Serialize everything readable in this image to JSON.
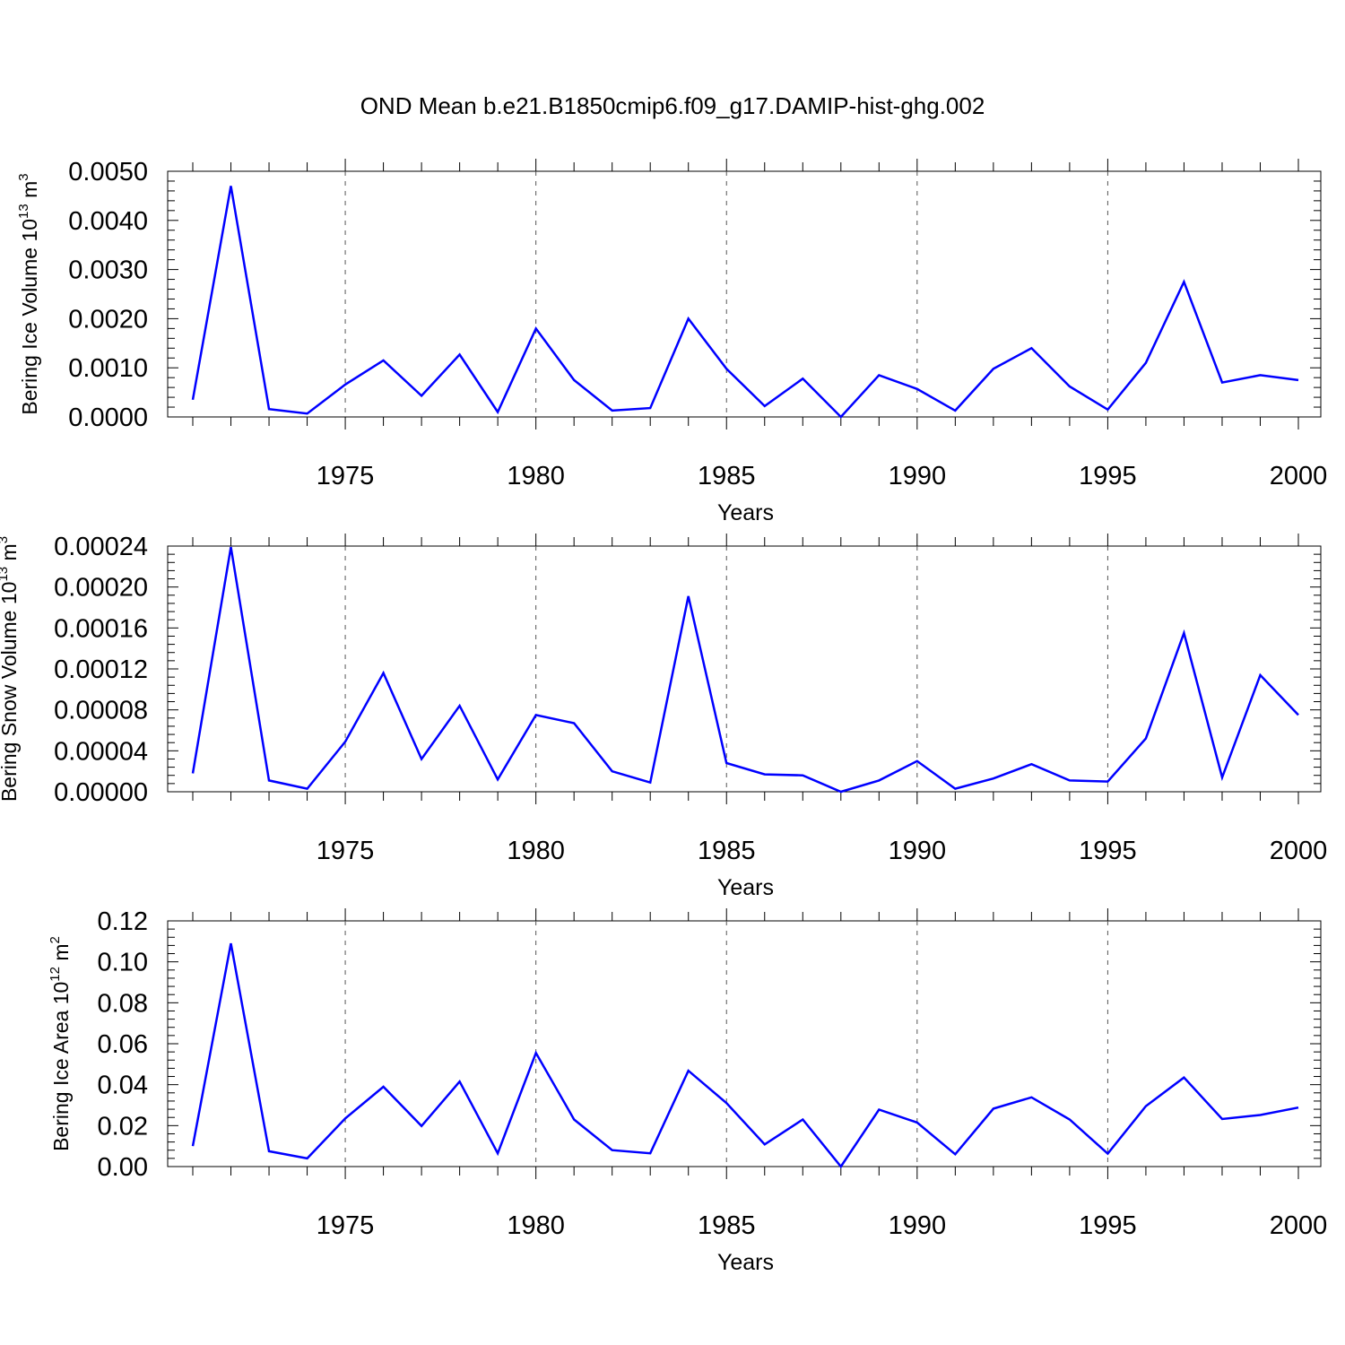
{
  "figure_title": "OND Mean b.e21.B1850cmip6.f09_g17.DAMIP-hist-ghg.002",
  "line_color": "#0000ff",
  "chart_data": [
    {
      "type": "line",
      "title": "OND Mean b.e21.B1850cmip6.f09_g17.DAMIP-hist-ghg.002",
      "xlabel": "Years",
      "ylabel": {
        "main": "Bering Ice Volume 10",
        "exp": "13",
        "unit": " m",
        "unit_exp": "3"
      },
      "xlim": [
        1971,
        2000
      ],
      "ylim": [
        0,
        0.005
      ],
      "xticks": [
        1975,
        1980,
        1985,
        1990,
        1995,
        2000
      ],
      "xtick_labels": [
        "1975",
        "1980",
        "1985",
        "1990",
        "1995",
        "2000"
      ],
      "yticks": [
        0,
        0.001,
        0.002,
        0.003,
        0.004,
        0.005
      ],
      "ytick_labels": [
        "0.0000",
        "0.0010",
        "0.0020",
        "0.0030",
        "0.0040",
        "0.0050"
      ],
      "grid": "vertical dashed at major x ticks",
      "series": [
        {
          "name": "Bering Ice Volume",
          "x": [
            1971,
            1972,
            1973,
            1974,
            1975,
            1976,
            1977,
            1978,
            1979,
            1980,
            1981,
            1982,
            1983,
            1984,
            1985,
            1986,
            1987,
            1988,
            1989,
            1990,
            1991,
            1992,
            1993,
            1994,
            1995,
            1996,
            1997,
            1998,
            1999,
            2000
          ],
          "values": [
            0.00035,
            0.0047,
            0.00016,
            7e-05,
            0.00066,
            0.00115,
            0.00043,
            0.00127,
            0.0001,
            0.0018,
            0.00075,
            0.00013,
            0.00018,
            0.002,
            0.00098,
            0.00022,
            0.00078,
            0.0,
            0.00085,
            0.00057,
            0.00013,
            0.00098,
            0.0014,
            0.00062,
            0.00015,
            0.0011,
            0.00275,
            0.0007,
            0.00085,
            0.00075
          ]
        }
      ]
    },
    {
      "type": "line",
      "xlabel": "Years",
      "ylabel": {
        "main": "Bering Snow Volume 10",
        "exp": "13",
        "unit": " m",
        "unit_exp": "3"
      },
      "xlim": [
        1971,
        2000
      ],
      "ylim": [
        0,
        0.00024
      ],
      "xticks": [
        1975,
        1980,
        1985,
        1990,
        1995,
        2000
      ],
      "xtick_labels": [
        "1975",
        "1980",
        "1985",
        "1990",
        "1995",
        "2000"
      ],
      "yticks": [
        0,
        4e-05,
        8e-05,
        0.00012,
        0.00016,
        0.0002,
        0.00024
      ],
      "ytick_labels": [
        "0.00000",
        "0.00004",
        "0.00008",
        "0.00012",
        "0.00016",
        "0.00020",
        "0.00024"
      ],
      "grid": "vertical dashed at major x ticks",
      "series": [
        {
          "name": "Bering Snow Volume",
          "x": [
            1971,
            1972,
            1973,
            1974,
            1975,
            1976,
            1977,
            1978,
            1979,
            1980,
            1981,
            1982,
            1983,
            1984,
            1985,
            1986,
            1987,
            1988,
            1989,
            1990,
            1991,
            1992,
            1993,
            1994,
            1995,
            1996,
            1997,
            1998,
            1999,
            2000
          ],
          "values": [
            1.8e-05,
            0.000239,
            1.1e-05,
            3e-06,
            4.9e-05,
            0.000116,
            3.2e-05,
            8.4e-05,
            1.2e-05,
            7.5e-05,
            6.7e-05,
            2e-05,
            9e-06,
            0.000191,
            2.8e-05,
            1.7e-05,
            1.6e-05,
            0.0,
            1.1e-05,
            3e-05,
            3e-06,
            1.3e-05,
            2.7e-05,
            1.1e-05,
            1e-05,
            5.2e-05,
            0.000155,
            1.4e-05,
            0.000114,
            7.5e-05
          ]
        }
      ]
    },
    {
      "type": "line",
      "xlabel": "Years",
      "ylabel": {
        "main": "Bering Ice Area 10",
        "exp": "12",
        "unit": " m",
        "unit_exp": "2"
      },
      "xlim": [
        1971,
        2000
      ],
      "ylim": [
        0,
        0.12
      ],
      "xticks": [
        1975,
        1980,
        1985,
        1990,
        1995,
        2000
      ],
      "xtick_labels": [
        "1975",
        "1980",
        "1985",
        "1990",
        "1995",
        "2000"
      ],
      "yticks": [
        0,
        0.02,
        0.04,
        0.06,
        0.08,
        0.1,
        0.12
      ],
      "ytick_labels": [
        "0.00",
        "0.02",
        "0.04",
        "0.06",
        "0.08",
        "0.10",
        "0.12"
      ],
      "grid": "vertical dashed at major x ticks",
      "series": [
        {
          "name": "Bering Ice Area",
          "x": [
            1971,
            1972,
            1973,
            1974,
            1975,
            1976,
            1977,
            1978,
            1979,
            1980,
            1981,
            1982,
            1983,
            1984,
            1985,
            1986,
            1987,
            1988,
            1989,
            1990,
            1991,
            1992,
            1993,
            1994,
            1995,
            1996,
            1997,
            1998,
            1999,
            2000
          ],
          "values": [
            0.01,
            0.109,
            0.0075,
            0.004,
            0.0235,
            0.039,
            0.0198,
            0.0415,
            0.0065,
            0.0555,
            0.023,
            0.008,
            0.0065,
            0.0468,
            0.031,
            0.0108,
            0.023,
            0.0,
            0.0278,
            0.0215,
            0.006,
            0.0283,
            0.0338,
            0.023,
            0.0063,
            0.0295,
            0.0435,
            0.0232,
            0.0252,
            0.0288
          ]
        }
      ]
    }
  ]
}
